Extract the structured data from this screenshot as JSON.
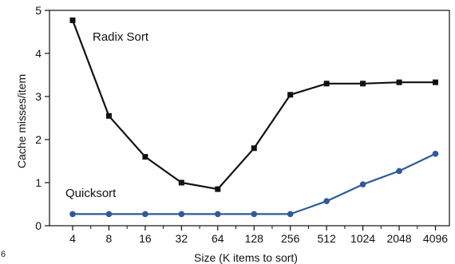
{
  "chart_data": {
    "type": "line",
    "title": "",
    "xlabel": "Size (K items to sort)",
    "ylabel": "Cache misses/item",
    "categories": [
      "4",
      "8",
      "16",
      "32",
      "64",
      "128",
      "256",
      "512",
      "1024",
      "2048",
      "4096"
    ],
    "ylim": [
      0,
      5
    ],
    "yticks": [
      "0",
      "1",
      "2",
      "3",
      "4",
      "5"
    ],
    "grid": false,
    "legend": "inline labels",
    "series": [
      {
        "name": "Radix Sort",
        "color": "#111111",
        "marker": "square",
        "values": [
          4.77,
          2.55,
          1.6,
          1.0,
          0.85,
          1.8,
          3.04,
          3.3,
          3.3,
          3.33,
          3.33
        ]
      },
      {
        "name": "Quicksort",
        "color": "#2d5b9a",
        "marker": "circle",
        "values": [
          0.27,
          0.27,
          0.27,
          0.27,
          0.27,
          0.27,
          0.27,
          0.57,
          0.96,
          1.27,
          1.67
        ]
      }
    ]
  },
  "corner_mark": "6"
}
